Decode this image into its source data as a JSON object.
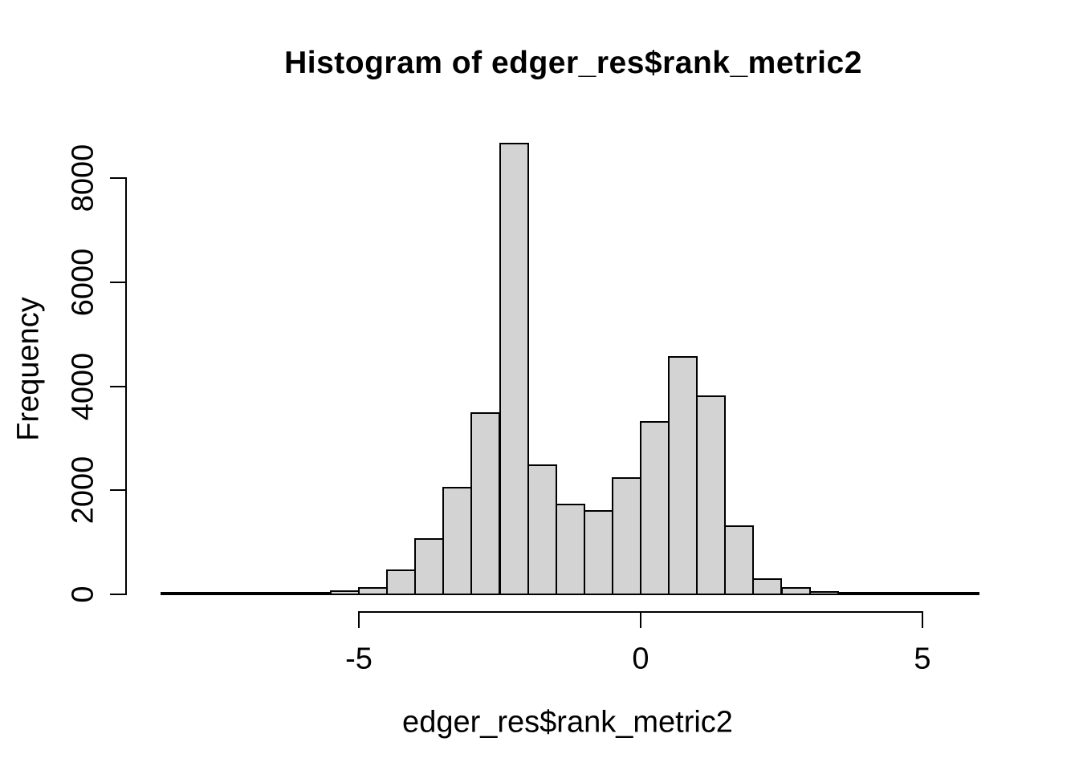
{
  "chart_data": {
    "type": "bar",
    "subtype": "histogram",
    "title": "Histogram of edger_res$rank_metric2",
    "xlabel": "edger_res$rank_metric2",
    "ylabel": "Frequency",
    "bin_width": 0.5,
    "bin_starts": [
      -8.5,
      -8.0,
      -7.5,
      -7.0,
      -6.5,
      -6.0,
      -5.5,
      -5.0,
      -4.5,
      -4.0,
      -3.5,
      -3.0,
      -2.5,
      -2.0,
      -1.5,
      -1.0,
      -0.5,
      0.0,
      0.5,
      1.0,
      1.5,
      2.0,
      2.5,
      3.0,
      3.5,
      4.0,
      4.5,
      5.0,
      5.5
    ],
    "counts": [
      2,
      2,
      3,
      3,
      5,
      12,
      55,
      110,
      460,
      1050,
      2050,
      3480,
      8660,
      2480,
      1720,
      1600,
      2230,
      3310,
      4550,
      3800,
      1300,
      290,
      110,
      45,
      25,
      10,
      6,
      4,
      3
    ],
    "x_ticks": [
      -5,
      0,
      5
    ],
    "x_tick_labels": [
      "-5",
      "0",
      "5"
    ],
    "y_ticks": [
      0,
      2000,
      4000,
      6000,
      8000
    ],
    "y_tick_labels": [
      "0",
      "2000",
      "4000",
      "6000",
      "8000"
    ],
    "xlim": [
      -8.5,
      6.0
    ],
    "ylim": [
      0,
      8660
    ],
    "grid": "off",
    "legend": "none",
    "colors": {
      "bar_fill": "#d3d3d3",
      "bar_stroke": "#000000",
      "axis": "#000000",
      "text": "#000000",
      "background": "#ffffff"
    }
  }
}
